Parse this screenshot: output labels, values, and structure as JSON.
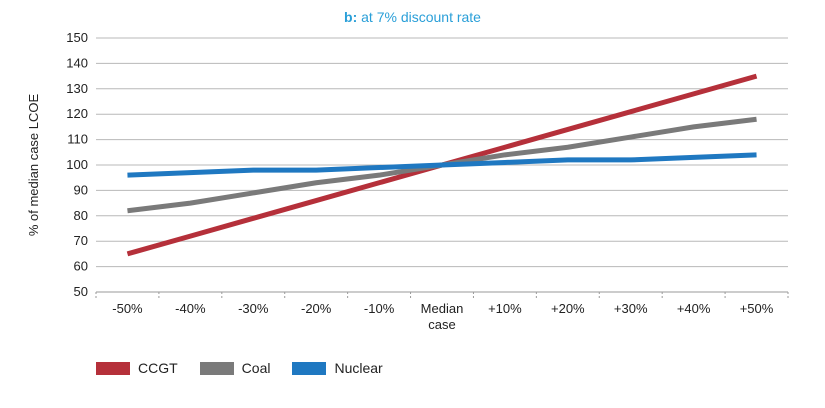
{
  "chart_data": {
    "type": "line",
    "title_prefix": "b:",
    "title_text": "at 7% discount rate",
    "ylabel": "% of median case LCOE",
    "xlabel": "",
    "ylim": [
      50,
      150
    ],
    "yticks": [
      50,
      60,
      70,
      80,
      90,
      100,
      110,
      120,
      130,
      140,
      150
    ],
    "categories": [
      "-50%",
      "-40%",
      "-30%",
      "-20%",
      "-10%",
      "Median case",
      "+10%",
      "+20%",
      "+30%",
      "+40%",
      "+50%"
    ],
    "category_lines": [
      [
        "-50%"
      ],
      [
        "-40%"
      ],
      [
        "-30%"
      ],
      [
        "-20%"
      ],
      [
        "-10%"
      ],
      [
        "Median",
        "case"
      ],
      [
        "+10%"
      ],
      [
        "+20%"
      ],
      [
        "+30%"
      ],
      [
        "+40%"
      ],
      [
        "+50%"
      ]
    ],
    "series": [
      {
        "name": "CCGT",
        "color": "#b5303a",
        "values": [
          65,
          72,
          79,
          86,
          93,
          100,
          107,
          114,
          121,
          128,
          135
        ]
      },
      {
        "name": "Coal",
        "color": "#7a7a7a",
        "values": [
          82,
          85,
          89,
          93,
          96,
          100,
          104,
          107,
          111,
          115,
          118
        ]
      },
      {
        "name": "Nuclear",
        "color": "#1f78c1",
        "values": [
          96,
          97,
          98,
          98,
          99,
          100,
          101,
          102,
          102,
          103,
          104
        ]
      }
    ],
    "grid": true,
    "legend_position": "bottom-left"
  }
}
